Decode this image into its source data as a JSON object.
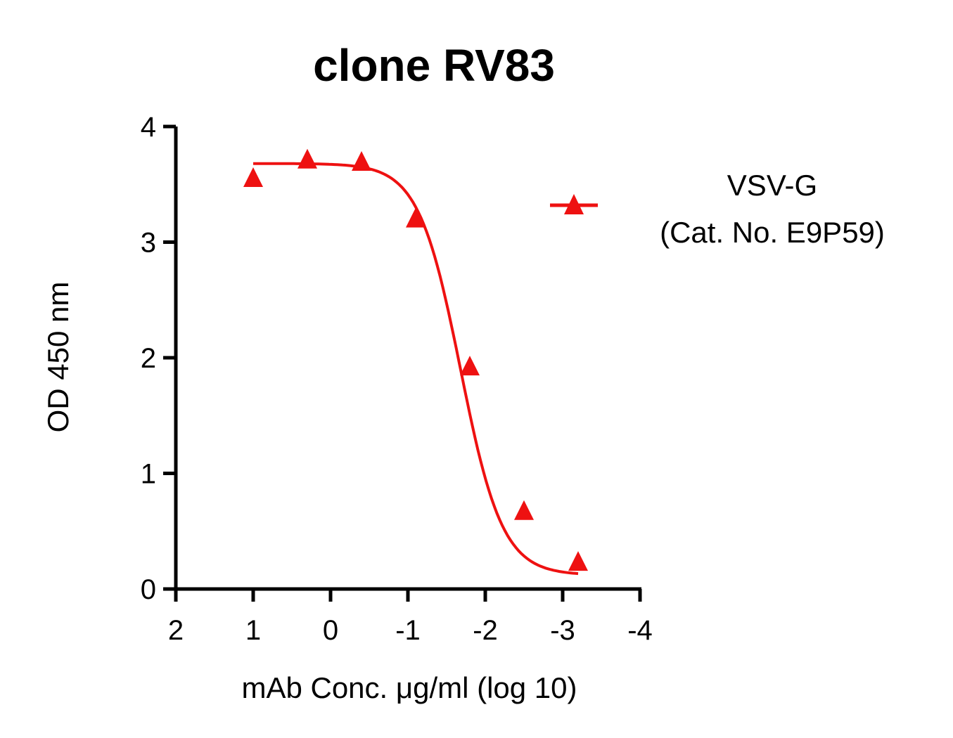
{
  "chart_data": {
    "type": "scatter",
    "title": "clone RV83",
    "xlabel": "mAb Conc. μg/ml (log 10)",
    "ylabel": "OD 450 nm",
    "xlim": [
      2,
      -4
    ],
    "ylim": [
      0,
      4
    ],
    "x_ticks": [
      2,
      1,
      0,
      -1,
      -2,
      -3,
      -4
    ],
    "x_tick_labels": [
      "2",
      "1",
      "0",
      "-1",
      "-2",
      "-3",
      "-4"
    ],
    "y_ticks": [
      0,
      1,
      2,
      3,
      4
    ],
    "y_tick_labels": [
      "0",
      "1",
      "2",
      "3",
      "4"
    ],
    "grid": false,
    "legend_position": "top-right",
    "series": [
      {
        "name": "VSV-G",
        "name_line2": "(Cat. No. E9P59)",
        "color": "#ee1111",
        "marker": "triangle",
        "points": [
          {
            "x": 1.0,
            "y": 3.55
          },
          {
            "x": 0.3,
            "y": 3.71
          },
          {
            "x": -0.4,
            "y": 3.69
          },
          {
            "x": -1.1,
            "y": 3.2
          },
          {
            "x": -1.8,
            "y": 1.92
          },
          {
            "x": -2.5,
            "y": 0.67
          },
          {
            "x": -3.2,
            "y": 0.23
          }
        ],
        "fit": {
          "model": "4PL",
          "top": 3.68,
          "bottom": 0.12,
          "log_ec50": -1.68,
          "hill": 1.6,
          "x_range": [
            1.0,
            -3.2
          ]
        }
      }
    ]
  }
}
